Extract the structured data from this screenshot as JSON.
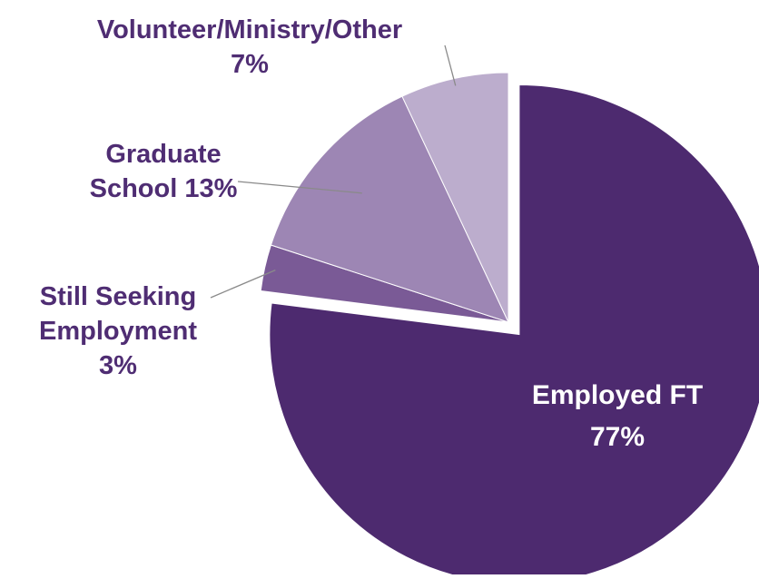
{
  "chart_data": {
    "type": "pie",
    "series": [
      {
        "name": "",
        "values": [
          77,
          3,
          13,
          7
        ]
      }
    ],
    "slices": [
      {
        "label_line1": "Employed FT",
        "label_line2": "",
        "value_text": "77%",
        "value": 77,
        "color": "#4d2a6f"
      },
      {
        "label_line1": "Still Seeking",
        "label_line2": "Employment",
        "value_text": "3%",
        "value": 3,
        "color": "#7a5a96"
      },
      {
        "label_line1": "Graduate",
        "label_line2": "School",
        "value_text": "13%",
        "value": 13,
        "color": "#9d86b4"
      },
      {
        "label_line1": "Volunteer/Ministry/Other",
        "label_line2": "",
        "value_text": "7%",
        "value": 7,
        "color": "#bcadcd"
      }
    ],
    "exploded": "Employed FT",
    "legend": "none",
    "title": ""
  }
}
